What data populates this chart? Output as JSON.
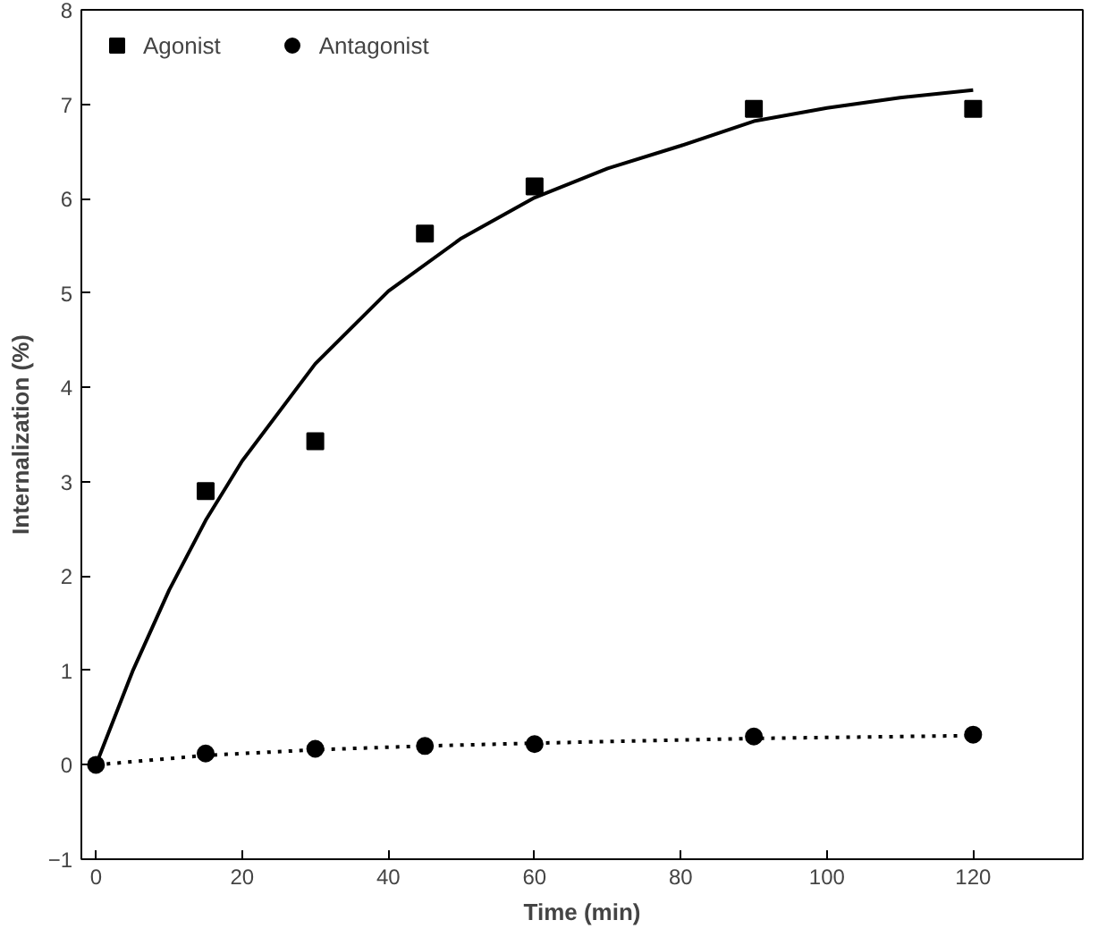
{
  "chart_data": {
    "type": "scatter",
    "xlabel": "Time (min)",
    "ylabel": "Internalization (%)",
    "xlim": [
      -2,
      135
    ],
    "ylim": [
      -1,
      8
    ],
    "xticks": [
      0,
      20,
      40,
      60,
      80,
      100,
      120
    ],
    "yticks": [
      -1,
      0,
      1,
      2,
      3,
      4,
      5,
      6,
      7,
      8
    ],
    "grid": false,
    "legend": "top left",
    "series": [
      {
        "name": "Agonist",
        "marker": "square",
        "color": "#000000",
        "x": [
          15,
          30,
          45,
          60,
          90,
          120
        ],
        "values": [
          2.9,
          3.43,
          5.63,
          6.13,
          6.95,
          6.95
        ]
      },
      {
        "name": "Antagonist",
        "marker": "circle",
        "color": "#000000",
        "x": [
          0,
          15,
          30,
          45,
          60,
          90,
          120
        ],
        "values": [
          0,
          0.12,
          0.17,
          0.2,
          0.22,
          0.3,
          0.32
        ]
      },
      {
        "type": "line",
        "line_style": "solid",
        "color": "#000000",
        "x": [
          0,
          5,
          10,
          15,
          20,
          30,
          40,
          50,
          60,
          70,
          80,
          90,
          100,
          110,
          120
        ],
        "values": [
          0,
          0.99,
          1.85,
          2.59,
          3.22,
          4.25,
          5.02,
          5.58,
          6.01,
          6.32,
          6.56,
          6.82,
          6.96,
          7.07,
          7.15
        ]
      },
      {
        "type": "line",
        "line_style": "dotted",
        "color": "#000000",
        "x": [
          0,
          15,
          30,
          45,
          60,
          90,
          120
        ],
        "values": [
          0,
          0.1,
          0.16,
          0.2,
          0.23,
          0.28,
          0.31
        ]
      }
    ]
  }
}
